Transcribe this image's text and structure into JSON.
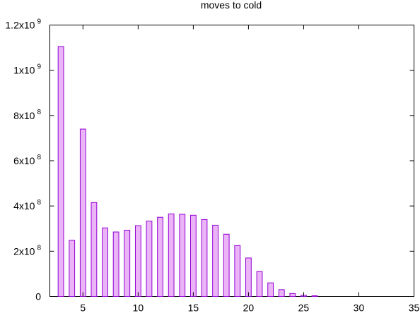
{
  "chart_data": {
    "type": "bar",
    "title": "moves to cold",
    "xlabel": "",
    "ylabel": "",
    "xlim": [
      2,
      35
    ],
    "ylim": [
      0,
      1200000000
    ],
    "grid": false,
    "legend": "none",
    "colors": {
      "bar_fill": "#ebb4f7",
      "bar_stroke": "#9400d3",
      "axis": "#000000"
    },
    "x_ticks": [
      {
        "value": 5,
        "label": "5"
      },
      {
        "value": 10,
        "label": "10"
      },
      {
        "value": 15,
        "label": "15"
      },
      {
        "value": 20,
        "label": "20"
      },
      {
        "value": 25,
        "label": "25"
      },
      {
        "value": 30,
        "label": "30"
      },
      {
        "value": 35,
        "label": "35"
      }
    ],
    "y_ticks": [
      {
        "value": 0,
        "mantissa": "0",
        "exponent": ""
      },
      {
        "value": 200000000,
        "mantissa": "2x10",
        "exponent": "8"
      },
      {
        "value": 400000000,
        "mantissa": "4x10",
        "exponent": "8"
      },
      {
        "value": 600000000,
        "mantissa": "6x10",
        "exponent": "8"
      },
      {
        "value": 800000000,
        "mantissa": "8x10",
        "exponent": "8"
      },
      {
        "value": 1000000000,
        "mantissa": "1x10",
        "exponent": "9"
      },
      {
        "value": 1200000000,
        "mantissa": "1.2x10",
        "exponent": "9"
      }
    ],
    "x": [
      3,
      4,
      5,
      6,
      7,
      8,
      9,
      10,
      11,
      12,
      13,
      14,
      15,
      16,
      17,
      18,
      19,
      20,
      21,
      22,
      23,
      24,
      25,
      26
    ],
    "values": [
      1105000000,
      248000000,
      740000000,
      415000000,
      303000000,
      285000000,
      293000000,
      313000000,
      333000000,
      350000000,
      365000000,
      363000000,
      359000000,
      340000000,
      315000000,
      275000000,
      225000000,
      170000000,
      110000000,
      60000000,
      30000000,
      13000000,
      5000000,
      3000000
    ]
  }
}
